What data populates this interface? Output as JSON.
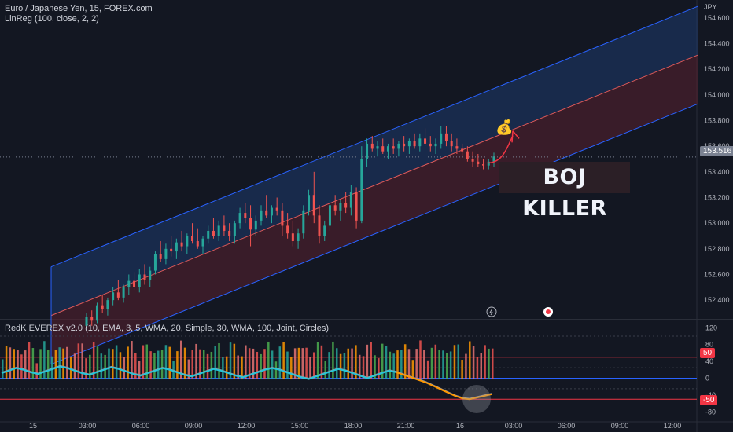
{
  "header": {
    "symbol_line": "Euro / Japanese Yen, 15, FOREX.com",
    "indicator_line": "LinReg (100, close, 2, 2)",
    "currency": "JPY"
  },
  "oscillator": {
    "title": "RedK EVEREX v2.0 (10, EMA, 3, 5, WMA, 20, Simple, 30, WMA, 100, Joint, Circles)",
    "level_high_label": "50",
    "level_low_label": "-50",
    "axis_labels": [
      "120",
      "80",
      "40",
      "0",
      "-40",
      "-80"
    ]
  },
  "annotation": {
    "text": "BOJ KILLER",
    "money_icon": "money-bag-icon"
  },
  "last_price": "153.516",
  "colors": {
    "up": "#26a69a",
    "down": "#ef5350",
    "upper_channel": "#1e3a6e",
    "lower_channel": "#5a2030",
    "channel_line_blue": "#2962ff",
    "center_line": "#e05a5a",
    "level_line": "#f23645",
    "osc_teal": "#26c6da",
    "osc_orange": "#ff9800"
  },
  "chart_data": {
    "type": "candlestick",
    "title": "Euro / Japanese Yen, 15, FOREX.com",
    "ylabel": "JPY",
    "yticks": [
      "154.600",
      "154.400",
      "154.200",
      "154.000",
      "153.800",
      "153.600",
      "153.400",
      "153.200",
      "153.000",
      "152.800",
      "152.600",
      "152.400"
    ],
    "xticks": [
      "15",
      "03:00",
      "06:00",
      "09:00",
      "12:00",
      "15:00",
      "18:00",
      "21:00",
      "16",
      "03:00",
      "06:00",
      "09:00",
      "12:00"
    ],
    "ylim": [
      152.26,
      154.74
    ],
    "channel": {
      "start_bar": 0,
      "end_bar": 167,
      "center_start": 152.28,
      "center_end": 154.31,
      "width": 0.38
    },
    "candles": [
      [
        152.2,
        152.3,
        152.18,
        152.27
      ],
      [
        152.27,
        152.32,
        152.2,
        152.24
      ],
      [
        152.24,
        152.38,
        152.22,
        152.36
      ],
      [
        152.36,
        152.44,
        152.3,
        152.33
      ],
      [
        152.33,
        152.42,
        152.28,
        152.4
      ],
      [
        152.4,
        152.5,
        152.36,
        152.46
      ],
      [
        152.46,
        152.56,
        152.4,
        152.42
      ],
      [
        152.42,
        152.52,
        152.38,
        152.5
      ],
      [
        152.5,
        152.6,
        152.44,
        152.55
      ],
      [
        152.55,
        152.62,
        152.48,
        152.5
      ],
      [
        152.5,
        152.64,
        152.46,
        152.6
      ],
      [
        152.6,
        152.68,
        152.52,
        152.56
      ],
      [
        152.56,
        152.66,
        152.5,
        152.63
      ],
      [
        152.63,
        152.78,
        152.6,
        152.76
      ],
      [
        152.76,
        152.86,
        152.7,
        152.72
      ],
      [
        152.72,
        152.84,
        152.68,
        152.8
      ],
      [
        152.8,
        152.9,
        152.74,
        152.78
      ],
      [
        152.78,
        152.88,
        152.72,
        152.85
      ],
      [
        152.85,
        152.94,
        152.78,
        152.82
      ],
      [
        152.82,
        152.92,
        152.76,
        152.9
      ],
      [
        152.9,
        153.0,
        152.84,
        152.86
      ],
      [
        152.86,
        152.96,
        152.8,
        152.82
      ],
      [
        152.82,
        152.9,
        152.76,
        152.88
      ],
      [
        152.88,
        152.98,
        152.84,
        152.94
      ],
      [
        152.94,
        153.04,
        152.88,
        152.9
      ],
      [
        152.9,
        153.02,
        152.86,
        152.98
      ],
      [
        152.98,
        153.06,
        152.9,
        152.94
      ],
      [
        152.94,
        153.0,
        152.86,
        152.9
      ],
      [
        152.9,
        153.02,
        152.84,
        153.0
      ],
      [
        153.0,
        153.12,
        152.96,
        153.08
      ],
      [
        153.08,
        153.16,
        153.0,
        153.04
      ],
      [
        153.04,
        153.14,
        152.82,
        152.95
      ],
      [
        152.95,
        153.06,
        152.9,
        153.02
      ],
      [
        153.02,
        153.14,
        152.98,
        153.1
      ],
      [
        153.1,
        153.22,
        153.04,
        153.06
      ],
      [
        153.06,
        153.14,
        153.0,
        153.12
      ],
      [
        153.12,
        153.2,
        153.06,
        153.1
      ],
      [
        153.1,
        153.16,
        152.9,
        152.98
      ],
      [
        152.98,
        153.08,
        152.88,
        152.92
      ],
      [
        152.92,
        153.02,
        152.82,
        152.86
      ],
      [
        152.86,
        152.96,
        152.8,
        152.92
      ],
      [
        152.92,
        153.14,
        152.88,
        153.1
      ],
      [
        153.1,
        153.26,
        153.06,
        153.22
      ],
      [
        153.22,
        153.4,
        153.0,
        153.06
      ],
      [
        153.06,
        153.14,
        152.84,
        152.9
      ],
      [
        152.9,
        153.02,
        152.86,
        152.98
      ],
      [
        152.98,
        153.18,
        152.94,
        153.14
      ],
      [
        153.14,
        153.22,
        153.06,
        153.1
      ],
      [
        153.1,
        153.18,
        153.02,
        153.16
      ],
      [
        153.16,
        153.24,
        153.08,
        153.12
      ],
      [
        153.12,
        153.3,
        153.06,
        153.24
      ],
      [
        153.24,
        153.28,
        152.96,
        153.02
      ],
      [
        153.02,
        153.6,
        153.0,
        153.5
      ],
      [
        153.5,
        153.66,
        153.44,
        153.62
      ],
      [
        153.62,
        153.68,
        153.56,
        153.58
      ],
      [
        153.58,
        153.64,
        153.52,
        153.6
      ],
      [
        153.6,
        153.66,
        153.54,
        153.56
      ],
      [
        153.56,
        153.62,
        153.5,
        153.6
      ],
      [
        153.6,
        153.66,
        153.54,
        153.58
      ],
      [
        153.58,
        153.64,
        153.52,
        153.62
      ],
      [
        153.62,
        153.68,
        153.56,
        153.6
      ],
      [
        153.6,
        153.66,
        153.54,
        153.64
      ],
      [
        153.64,
        153.7,
        153.58,
        153.6
      ],
      [
        153.6,
        153.7,
        153.56,
        153.66
      ],
      [
        153.66,
        153.74,
        153.6,
        153.62
      ],
      [
        153.62,
        153.68,
        153.56,
        153.6
      ],
      [
        153.6,
        153.66,
        153.54,
        153.62
      ],
      [
        153.62,
        153.76,
        153.58,
        153.7
      ],
      [
        153.7,
        153.76,
        153.6,
        153.64
      ],
      [
        153.64,
        153.7,
        153.56,
        153.6
      ],
      [
        153.6,
        153.66,
        153.54,
        153.58
      ],
      [
        153.58,
        153.62,
        153.52,
        153.56
      ],
      [
        153.56,
        153.6,
        153.48,
        153.5
      ],
      [
        153.5,
        153.56,
        153.44,
        153.48
      ],
      [
        153.48,
        153.54,
        153.44,
        153.46
      ],
      [
        153.46,
        153.5,
        153.42,
        153.45
      ],
      [
        153.45,
        153.5,
        153.42,
        153.48
      ],
      [
        153.48,
        153.55,
        153.44,
        153.52
      ]
    ],
    "oscillator_series": {
      "teal_line": [
        12,
        18,
        24,
        20,
        14,
        10,
        16,
        22,
        28,
        24,
        18,
        12,
        8,
        14,
        20,
        26,
        22,
        16,
        10,
        6,
        12,
        18,
        24,
        20,
        14,
        8,
        4,
        10,
        16,
        22,
        18,
        12,
        6,
        2,
        8,
        14,
        20,
        24,
        20,
        14,
        8,
        2,
        -2,
        4,
        10,
        16,
        22,
        18,
        12,
        6,
        0,
        6,
        12,
        18,
        14,
        8,
        2,
        -4,
        -10,
        -18,
        -26,
        -34,
        -42,
        -48,
        -50,
        -46,
        -42,
        -38
      ],
      "grey_line": [
        14,
        20,
        26,
        22,
        16,
        12,
        18,
        24,
        30,
        26,
        20,
        14,
        10,
        16,
        22,
        28,
        24,
        18,
        12,
        8,
        14,
        20,
        26,
        22,
        16,
        10,
        6,
        12,
        18,
        24,
        20,
        14,
        8,
        4,
        10,
        16,
        22,
        26,
        22,
        16,
        10,
        4,
        0,
        6,
        12,
        18,
        24,
        20,
        14,
        8,
        2,
        8,
        14,
        20,
        16,
        10,
        4,
        -2,
        -8,
        -16,
        -24,
        -32,
        -40,
        -46,
        -48,
        -44,
        -40,
        -36
      ]
    },
    "last_price": 153.516,
    "annotation": "BOJ KILLER"
  }
}
